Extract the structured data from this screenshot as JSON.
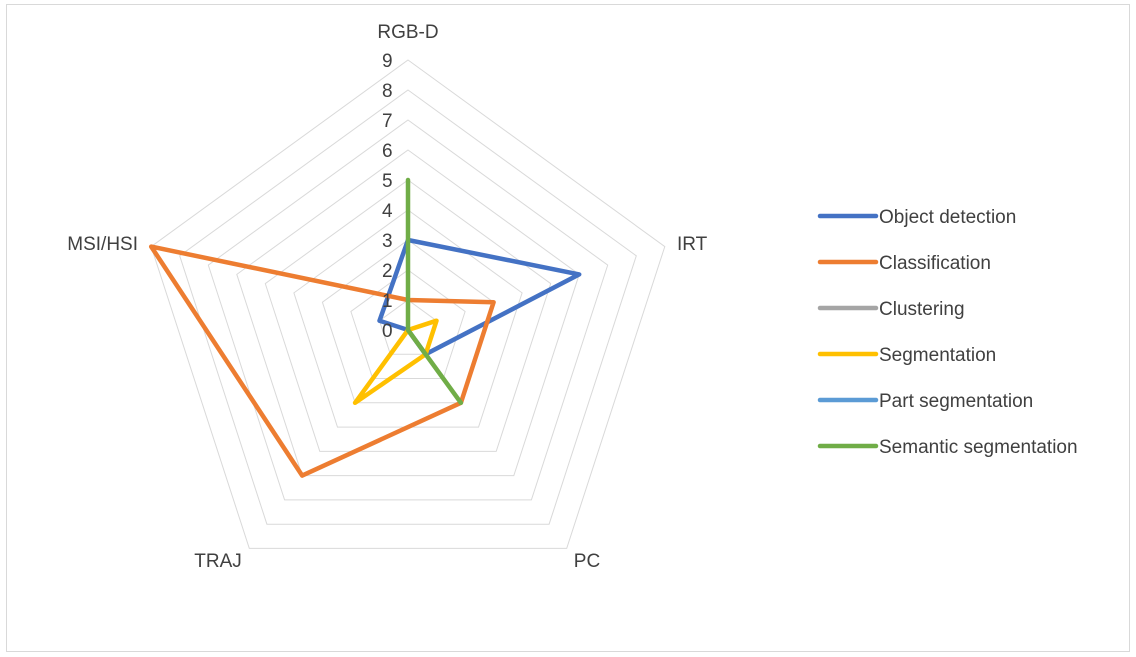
{
  "chart_data": {
    "type": "radar",
    "axes": [
      "RGB-D",
      "IRT",
      "PC",
      "TRAJ",
      "MSI/HSI"
    ],
    "ticks": [
      "0",
      "1",
      "2",
      "3",
      "4",
      "5",
      "6",
      "7",
      "8",
      "9"
    ],
    "rlim": [
      0,
      9
    ],
    "grid": true,
    "legend_position": "right",
    "series": [
      {
        "name": "Object detection",
        "color": "#4472C4",
        "values": [
          3,
          6,
          1,
          0,
          1
        ]
      },
      {
        "name": "Classification",
        "color": "#ED7D31",
        "values": [
          1,
          3,
          3,
          6,
          9
        ]
      },
      {
        "name": "Clustering",
        "color": "#A5A5A5",
        "values": [
          0,
          0,
          0,
          0,
          0
        ]
      },
      {
        "name": "Segmentation",
        "color": "#FFC000",
        "values": [
          0,
          1,
          1,
          3,
          0
        ]
      },
      {
        "name": "Part segmentation",
        "color": "#5B9BD5",
        "values": [
          0,
          0,
          0,
          0,
          0
        ]
      },
      {
        "name": "Semantic segmentation",
        "color": "#70AD47",
        "values": [
          5,
          0,
          3,
          0,
          0
        ]
      }
    ]
  }
}
